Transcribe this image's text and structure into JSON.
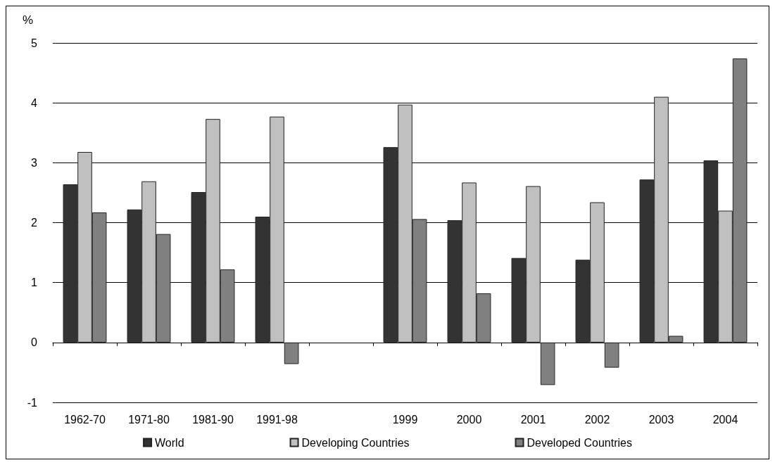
{
  "chart_data": {
    "type": "bar",
    "ylabel": "%",
    "categories": [
      "1962-70",
      "1971-80",
      "1981-90",
      "1991-98",
      null,
      "1999",
      "2000",
      "2001",
      "2002",
      "2003",
      "2004"
    ],
    "series": [
      {
        "name": "World",
        "color": "#333333",
        "values": [
          2.64,
          2.22,
          2.51,
          2.1,
          null,
          3.26,
          2.04,
          1.41,
          1.38,
          2.72,
          3.04
        ]
      },
      {
        "name": "Developing Countries",
        "color": "#c0c0c0",
        "values": [
          3.18,
          2.69,
          3.73,
          3.77,
          null,
          3.97,
          2.67,
          2.61,
          2.34,
          4.1,
          2.2
        ]
      },
      {
        "name": "Developed Countries",
        "color": "#808080",
        "values": [
          2.17,
          1.81,
          1.22,
          -0.36,
          null,
          2.06,
          0.82,
          -0.71,
          -0.42,
          0.11,
          4.74
        ]
      }
    ],
    "ylim": [
      -1,
      5
    ],
    "yticks": [
      -1,
      0,
      1,
      2,
      3,
      4,
      5
    ],
    "grid": "y",
    "legend": "bottom"
  }
}
